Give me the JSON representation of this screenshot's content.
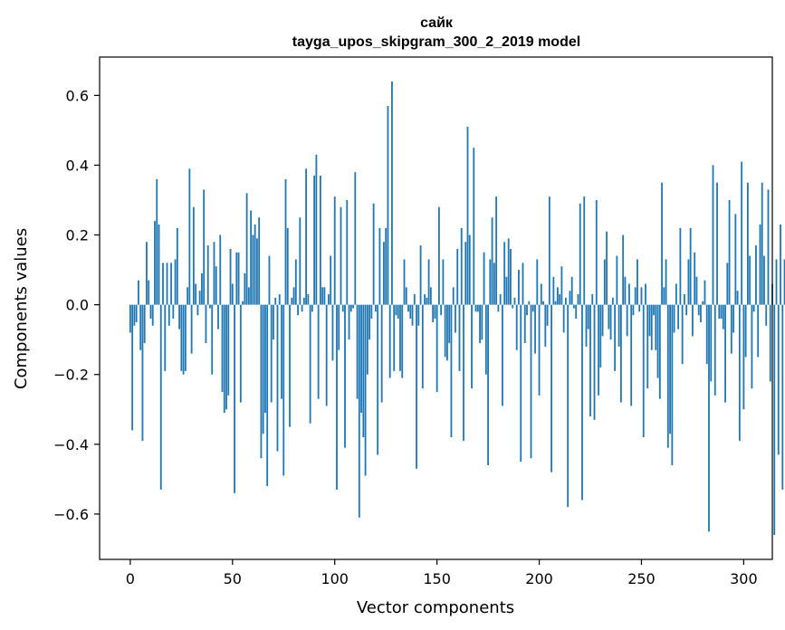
{
  "chart_data": {
    "type": "bar",
    "title": "сайк",
    "subtitle": "tayga_upos_skipgram_300_2_2019 model",
    "xlabel": "Vector components",
    "ylabel": "Components values",
    "xlim": [
      -15,
      314
    ],
    "ylim": [
      -0.73,
      0.71
    ],
    "xticks": [
      0,
      50,
      100,
      150,
      200,
      250,
      300
    ],
    "yticks": [
      0.6,
      0.4,
      0.2,
      0.0,
      -0.2,
      -0.4,
      -0.6
    ],
    "ytick_labels": [
      "0.6",
      "0.4",
      "0.2",
      "0.0",
      "−0.2",
      "−0.4",
      "−0.6"
    ],
    "bar_color": "#1f77b4",
    "grid": false,
    "values": [
      -0.08,
      -0.36,
      -0.06,
      -0.05,
      0.07,
      -0.13,
      -0.39,
      -0.11,
      0.18,
      0.07,
      -0.04,
      -0.06,
      0.24,
      0.36,
      0.23,
      -0.53,
      0.12,
      -0.19,
      0.12,
      -0.06,
      0.12,
      -0.04,
      0.13,
      0.22,
      -0.07,
      -0.19,
      -0.2,
      -0.19,
      0.05,
      0.39,
      -0.14,
      0.28,
      0.06,
      -0.03,
      0.04,
      0.09,
      0.33,
      -0.11,
      0.17,
      -0.01,
      -0.2,
      0.18,
      0.11,
      -0.07,
      0.2,
      -0.25,
      -0.31,
      -0.3,
      -0.26,
      0.16,
      0.06,
      -0.54,
      0.15,
      0.15,
      -0.28,
      0.01,
      0.09,
      0.32,
      0.05,
      0.27,
      0.2,
      0.23,
      0.19,
      0.25,
      -0.44,
      -0.37,
      -0.31,
      -0.52,
      0.14,
      -0.28,
      -0.1,
      0.02,
      -0.42,
      0.03,
      -0.27,
      -0.49,
      0.36,
      0.22,
      -0.35,
      0.02,
      0.05,
      0.13,
      -0.03,
      0.25,
      -0.02,
      0.02,
      0.39,
      0.03,
      -0.34,
      -0.02,
      0.37,
      0.43,
      -0.27,
      0.37,
      0.05,
      0.05,
      -0.29,
      0.03,
      0.14,
      -0.16,
      0.31,
      -0.53,
      -0.13,
      0.28,
      -0.02,
      -0.41,
      0.3,
      -0.1,
      -0.02,
      -0.01,
      0.38,
      -0.27,
      -0.61,
      -0.31,
      -0.38,
      -0.49,
      -0.2,
      -0.1,
      -0.04,
      0.29,
      -0.02,
      -0.43,
      0.22,
      -0.28,
      0.18,
      0.22,
      0.57,
      -0.21,
      0.64,
      -0.19,
      -0.03,
      -0.04,
      -0.19,
      -0.21,
      0.13,
      0.05,
      -0.02,
      -0.04,
      -0.06,
      0.03,
      -0.47,
      -0.06,
      0.17,
      -0.24,
      0.03,
      0.02,
      0.13,
      0.05,
      -0.05,
      -0.04,
      -0.25,
      0.28,
      -0.03,
      0.13,
      -0.15,
      -0.16,
      -0.11,
      -0.38,
      0.05,
      -0.08,
      0.16,
      -0.19,
      0.22,
      -0.39,
      0.18,
      0.51,
      0.2,
      -0.24,
      0.45,
      -0.02,
      -0.02,
      -0.11,
      -0.1,
      0.15,
      -0.2,
      -0.46,
      0.13,
      0.25,
      0.12,
      0.31,
      -0.02,
      0.03,
      -0.29,
      0.18,
      0.08,
      0.19,
      0.16,
      -0.01,
      0.02,
      -0.13,
      0.1,
      -0.45,
      0.12,
      -0.11,
      -0.03,
      0.01,
      -0.44,
      -0.02,
      -0.14,
      0.13,
      -0.26,
      0.06,
      0.01,
      -0.12,
      -0.06,
      0.31,
      -0.48,
      0.08,
      0.01,
      0.05,
      0.03,
      0.11,
      -0.08,
      0.02,
      -0.58,
      0.04,
      0.08,
      -0.01,
      -0.04,
      0.03,
      0.29,
      -0.56,
      0.31,
      -0.12,
      -0.07,
      -0.32,
      0.03,
      -0.33,
      0.3,
      -0.26,
      -0.18,
      -0.09,
      0.13,
      0.21,
      -0.07,
      -0.1,
      0.02,
      -0.19,
      0.14,
      -0.12,
      -0.28,
      0.2,
      0.08,
      -0.09,
      0.06,
      -0.29,
      -0.03,
      0.05,
      0.13,
      -0.02,
      0.05,
      -0.38,
      0.06,
      -0.24,
      -0.09,
      -0.13,
      -0.03,
      -0.13,
      -0.21,
      -0.27,
      0.35,
      0.05,
      0.13,
      -0.41,
      -0.37,
      -0.46,
      -0.08,
      0.06,
      -0.07,
      0.22,
      -0.17,
      0.03,
      -0.03,
      0.13,
      0.22,
      -0.09,
      0.15,
      0.08,
      -0.03,
      -0.05,
      0.01,
      0.07,
      -0.17,
      -0.65,
      -0.22,
      0.4,
      -0.26,
      0.35,
      -0.04,
      -0.04,
      -0.07,
      -0.28,
      0.12,
      0.3,
      -0.14,
      -0.08,
      0.26,
      0.04,
      -0.39,
      0.41,
      -0.3,
      -0.15,
      0.35,
      0.14,
      -0.24,
      -0.02,
      0.17,
      -0.15,
      0.23,
      0.35,
      0.14,
      -0.06,
      0.33,
      -0.22,
      0.06,
      -0.66,
      0.13,
      -0.43,
      0.23,
      -0.53,
      0.13
    ]
  }
}
